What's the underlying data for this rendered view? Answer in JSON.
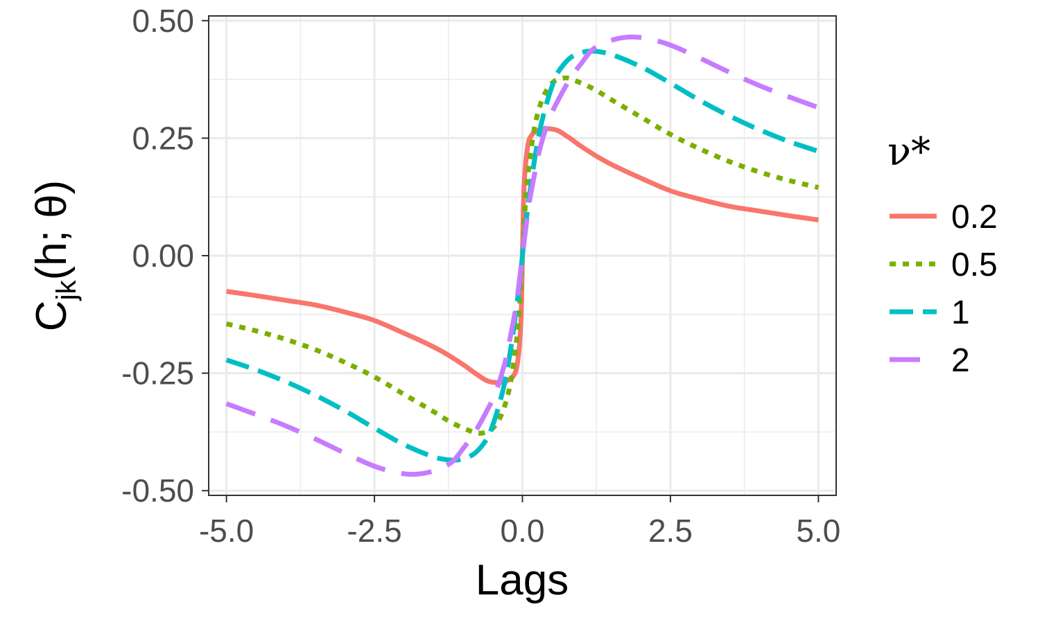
{
  "chart_data": {
    "type": "line",
    "xlabel": "Lags",
    "ylabel": {
      "main": "C",
      "subscript": "jk",
      "rest": "(h; θ)"
    },
    "xlim": [
      -5.3,
      5.3
    ],
    "ylim": [
      -0.51,
      0.51
    ],
    "x_ticks": [
      -5.0,
      -2.5,
      0.0,
      2.5,
      5.0
    ],
    "x_tick_labels": [
      "-5.0",
      "-2.5",
      "0.0",
      "2.5",
      "5.0"
    ],
    "y_ticks": [
      -0.5,
      -0.25,
      0.0,
      0.25,
      0.5
    ],
    "y_tick_labels": [
      "-0.50",
      "-0.25",
      "0.00",
      "0.25",
      "0.50"
    ],
    "grid": true,
    "legend": {
      "title": "ν*",
      "placement": "right"
    },
    "series": [
      {
        "name": "0.2",
        "color": "#F8766D",
        "dash": "solid",
        "x": [
          0,
          0.02,
          0.05,
          0.1,
          0.15,
          0.2,
          0.3,
          0.45,
          0.6,
          0.8,
          1.0,
          1.3,
          1.6,
          2.0,
          2.5,
          3.0,
          3.5,
          4.0,
          4.5,
          5.0
        ],
        "y": [
          0,
          0.12,
          0.19,
          0.24,
          0.255,
          0.262,
          0.268,
          0.27,
          0.266,
          0.25,
          0.232,
          0.208,
          0.188,
          0.165,
          0.138,
          0.12,
          0.105,
          0.095,
          0.085,
          0.076
        ]
      },
      {
        "name": "0.5",
        "color": "#7CAE00",
        "dash": "dotted",
        "x": [
          0,
          0.05,
          0.1,
          0.2,
          0.3,
          0.4,
          0.5,
          0.6,
          0.75,
          0.9,
          1.2,
          1.5,
          2.0,
          2.5,
          3.0,
          3.5,
          4.0,
          4.5,
          5.0
        ],
        "y": [
          0,
          0.11,
          0.18,
          0.27,
          0.32,
          0.35,
          0.367,
          0.375,
          0.378,
          0.372,
          0.355,
          0.332,
          0.295,
          0.258,
          0.227,
          0.2,
          0.178,
          0.16,
          0.145
        ]
      },
      {
        "name": "1",
        "color": "#00BFC4",
        "dash": "longdash-short",
        "x": [
          0,
          0.05,
          0.1,
          0.2,
          0.3,
          0.4,
          0.5,
          0.6,
          0.8,
          1.0,
          1.2,
          1.5,
          2.0,
          2.5,
          3.0,
          3.5,
          4.0,
          4.5,
          5.0
        ],
        "y": [
          0,
          0.06,
          0.11,
          0.2,
          0.27,
          0.32,
          0.36,
          0.39,
          0.42,
          0.432,
          0.435,
          0.428,
          0.402,
          0.367,
          0.33,
          0.297,
          0.268,
          0.243,
          0.222
        ]
      },
      {
        "name": "2",
        "color": "#C77CFF",
        "dash": "longdash",
        "x": [
          0,
          0.1,
          0.2,
          0.3,
          0.45,
          0.6,
          0.8,
          1.0,
          1.2,
          1.5,
          1.8,
          2.1,
          2.5,
          3.0,
          3.5,
          4.0,
          4.5,
          5.0
        ],
        "y": [
          0,
          0.1,
          0.17,
          0.23,
          0.29,
          0.33,
          0.375,
          0.41,
          0.44,
          0.458,
          0.465,
          0.462,
          0.448,
          0.42,
          0.39,
          0.362,
          0.338,
          0.315
        ]
      }
    ]
  }
}
